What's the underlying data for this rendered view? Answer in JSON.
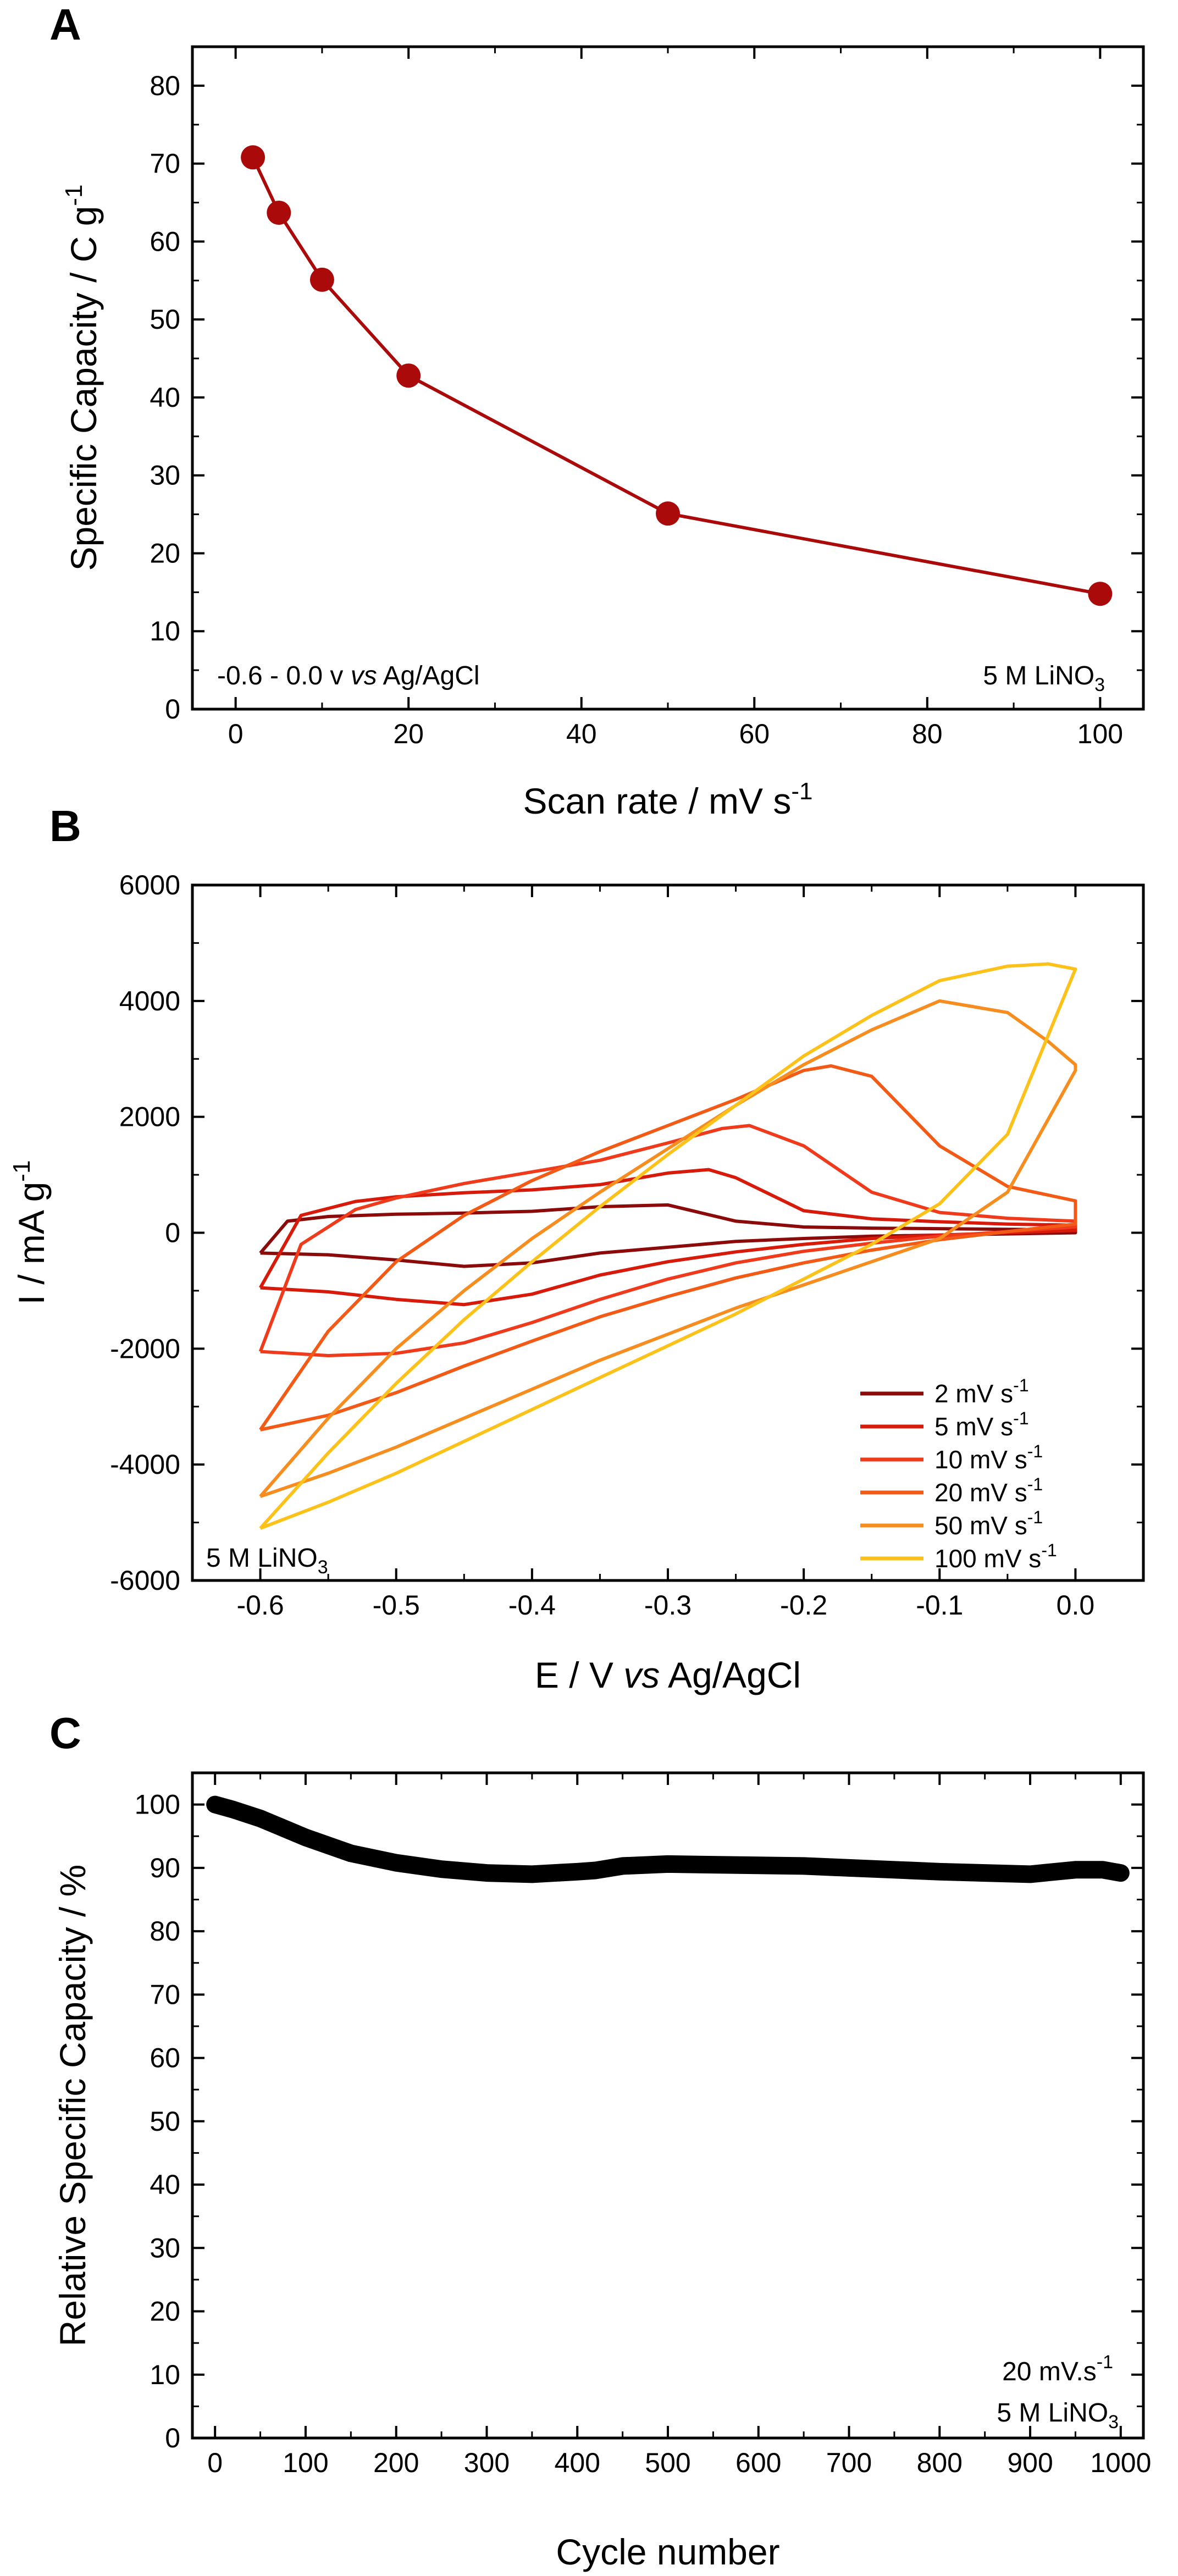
{
  "chart_data": [
    {
      "panel": "A",
      "type": "line",
      "markers": true,
      "x": [
        2,
        5,
        10,
        20,
        50,
        100
      ],
      "y": [
        70.8,
        63.7,
        55.1,
        42.8,
        25.1,
        14.8
      ],
      "xlabel": "Scan rate / mV s",
      "xlabel_sup": "-1",
      "ylabel": "Specific Capacity / C g",
      "ylabel_sup": "-1",
      "xlim": [
        -5,
        105
      ],
      "ylim": [
        0,
        85
      ],
      "xticks": [
        0,
        20,
        40,
        60,
        80,
        100
      ],
      "yticks": [
        0,
        10,
        20,
        30,
        40,
        50,
        60,
        70,
        80
      ],
      "color": "#aa0a0a",
      "annotations": [
        {
          "pre": "-0.6 - 0.0 v ",
          "italic": "vs",
          "post": " Ag/AgCl"
        },
        {
          "pre": "5 M LiNO",
          "sub": "3"
        }
      ],
      "grid": false
    },
    {
      "panel": "B",
      "type": "line",
      "xlabel": "E / V ",
      "xlabel_italic": "vs",
      "xlabel_post": " Ag/AgCl",
      "ylabel": "I / mA g",
      "ylabel_sup": "-1",
      "xlim": [
        -0.65,
        0.05
      ],
      "ylim": [
        -6000,
        6000
      ],
      "xticks": [
        -0.6,
        -0.5,
        -0.4,
        -0.3,
        -0.2,
        -0.1,
        0.0
      ],
      "xtick_labels": [
        "-0.6",
        "-0.5",
        "-0.4",
        "-0.3",
        "-0.2",
        "-0.1",
        "0.0"
      ],
      "yticks": [
        -6000,
        -4000,
        -2000,
        0,
        2000,
        4000,
        6000
      ],
      "legend_position": "bottom-right",
      "annotations": [
        {
          "pre": "5 M LiNO",
          "sub": "3"
        }
      ],
      "grid": false,
      "series": [
        {
          "name": "2 mV s",
          "name_sup": "-1",
          "color": "#8b0a0a",
          "anodic_x": [
            -0.6,
            -0.58,
            -0.55,
            -0.5,
            -0.45,
            -0.4,
            -0.35,
            -0.3,
            -0.25,
            -0.2,
            -0.15,
            -0.1,
            -0.05,
            0.0
          ],
          "anodic_y": [
            -350,
            200,
            280,
            320,
            340,
            370,
            450,
            480,
            200,
            100,
            80,
            70,
            60,
            50
          ],
          "cathodic_x": [
            0.0,
            -0.05,
            -0.1,
            -0.15,
            -0.2,
            -0.25,
            -0.3,
            -0.35,
            -0.4,
            -0.45,
            -0.5,
            -0.55,
            -0.6
          ],
          "cathodic_y": [
            0,
            -20,
            -40,
            -60,
            -100,
            -150,
            -250,
            -350,
            -520,
            -580,
            -470,
            -380,
            -350
          ]
        },
        {
          "name": "5 mV s",
          "name_sup": "-1",
          "color": "#d81a0a",
          "anodic_x": [
            -0.6,
            -0.57,
            -0.53,
            -0.5,
            -0.45,
            -0.4,
            -0.35,
            -0.3,
            -0.27,
            -0.25,
            -0.2,
            -0.15,
            -0.1,
            -0.05,
            0.0
          ],
          "anodic_y": [
            -950,
            300,
            540,
            620,
            690,
            740,
            830,
            1030,
            1090,
            950,
            380,
            240,
            190,
            150,
            130
          ],
          "cathodic_x": [
            0.0,
            -0.05,
            -0.1,
            -0.15,
            -0.2,
            -0.25,
            -0.3,
            -0.35,
            -0.4,
            -0.45,
            -0.5,
            -0.55,
            -0.6
          ],
          "cathodic_y": [
            40,
            0,
            -40,
            -100,
            -200,
            -330,
            -500,
            -730,
            -1060,
            -1240,
            -1150,
            -1020,
            -950
          ]
        },
        {
          "name": "10 mV s",
          "name_sup": "-1",
          "color": "#ef3a1c",
          "anodic_x": [
            -0.6,
            -0.57,
            -0.53,
            -0.5,
            -0.45,
            -0.4,
            -0.35,
            -0.3,
            -0.26,
            -0.24,
            -0.2,
            -0.15,
            -0.1,
            -0.05,
            0.0
          ],
          "anodic_y": [
            -2050,
            -200,
            400,
            600,
            850,
            1050,
            1250,
            1550,
            1800,
            1850,
            1500,
            700,
            350,
            250,
            200
          ],
          "cathodic_x": [
            0.0,
            -0.05,
            -0.1,
            -0.15,
            -0.2,
            -0.25,
            -0.3,
            -0.35,
            -0.4,
            -0.45,
            -0.5,
            -0.55,
            -0.6
          ],
          "cathodic_y": [
            100,
            20,
            -60,
            -180,
            -320,
            -520,
            -800,
            -1150,
            -1550,
            -1900,
            -2080,
            -2120,
            -2050
          ]
        },
        {
          "name": "20 mV s",
          "name_sup": "-1",
          "color": "#f35a16",
          "anodic_x": [
            -0.6,
            -0.55,
            -0.5,
            -0.45,
            -0.4,
            -0.35,
            -0.3,
            -0.25,
            -0.2,
            -0.18,
            -0.15,
            -0.1,
            -0.05,
            0.0
          ],
          "anodic_y": [
            -3400,
            -1700,
            -500,
            300,
            900,
            1400,
            1850,
            2300,
            2800,
            2880,
            2700,
            1500,
            800,
            550
          ],
          "cathodic_x": [
            0.0,
            -0.05,
            -0.1,
            -0.15,
            -0.2,
            -0.25,
            -0.3,
            -0.35,
            -0.4,
            -0.45,
            -0.5,
            -0.55,
            -0.6
          ],
          "cathodic_y": [
            150,
            20,
            -120,
            -300,
            -520,
            -780,
            -1100,
            -1450,
            -1870,
            -2300,
            -2760,
            -3150,
            -3400
          ]
        },
        {
          "name": "50 mV s",
          "name_sup": "-1",
          "color": "#f68d1e",
          "anodic_x": [
            -0.6,
            -0.55,
            -0.5,
            -0.45,
            -0.4,
            -0.35,
            -0.3,
            -0.25,
            -0.2,
            -0.15,
            -0.1,
            -0.05,
            -0.02,
            0.0
          ],
          "anodic_y": [
            -4550,
            -3200,
            -2000,
            -1000,
            -100,
            700,
            1450,
            2200,
            2900,
            3500,
            4000,
            3800,
            3300,
            2900
          ],
          "cathodic_x": [
            0.0,
            -0.05,
            -0.1,
            -0.15,
            -0.2,
            -0.25,
            -0.3,
            -0.35,
            -0.4,
            -0.45,
            -0.5,
            -0.55,
            -0.6
          ],
          "cathodic_y": [
            2800,
            700,
            -100,
            -500,
            -900,
            -1300,
            -1750,
            -2200,
            -2700,
            -3200,
            -3700,
            -4150,
            -4550
          ]
        },
        {
          "name": "100 mV s",
          "name_sup": "-1",
          "color": "#fcc21a",
          "anodic_x": [
            -0.6,
            -0.55,
            -0.5,
            -0.45,
            -0.4,
            -0.35,
            -0.3,
            -0.25,
            -0.2,
            -0.15,
            -0.1,
            -0.05,
            -0.02,
            0.0
          ],
          "anodic_y": [
            -5100,
            -3800,
            -2600,
            -1500,
            -500,
            450,
            1350,
            2200,
            3050,
            3750,
            4350,
            4600,
            4640,
            4550
          ],
          "cathodic_x": [
            0.0,
            -0.05,
            -0.1,
            -0.15,
            -0.2,
            -0.25,
            -0.3,
            -0.35,
            -0.4,
            -0.45,
            -0.5,
            -0.55,
            -0.6
          ],
          "cathodic_y": [
            4550,
            1700,
            500,
            -200,
            -800,
            -1400,
            -1950,
            -2500,
            -3050,
            -3600,
            -4150,
            -4650,
            -5100
          ]
        }
      ]
    },
    {
      "panel": "C",
      "type": "line",
      "thick": true,
      "x": [
        0,
        20,
        50,
        100,
        150,
        200,
        250,
        300,
        350,
        400,
        420,
        450,
        500,
        550,
        600,
        650,
        700,
        750,
        800,
        850,
        900,
        950,
        980,
        1000
      ],
      "y": [
        100,
        99.2,
        97.8,
        94.8,
        92.3,
        90.8,
        89.8,
        89.2,
        89.0,
        89.4,
        89.6,
        90.3,
        90.6,
        90.5,
        90.4,
        90.3,
        90.0,
        89.7,
        89.4,
        89.2,
        89.0,
        89.7,
        89.7,
        89.2
      ],
      "xlabel": "Cycle number",
      "ylabel": "Relative Specific Capacity / %",
      "xlim": [
        -25,
        1025
      ],
      "ylim": [
        0,
        105
      ],
      "xticks": [
        0,
        100,
        200,
        300,
        400,
        500,
        600,
        700,
        800,
        900,
        1000
      ],
      "yticks": [
        0,
        10,
        20,
        30,
        40,
        50,
        60,
        70,
        80,
        90,
        100
      ],
      "color": "#000000",
      "annotations": [
        {
          "pre": "20 mV.s",
          "sup": "-1"
        },
        {
          "pre": "5 M LiNO",
          "sub": "3"
        }
      ],
      "grid": false
    }
  ]
}
